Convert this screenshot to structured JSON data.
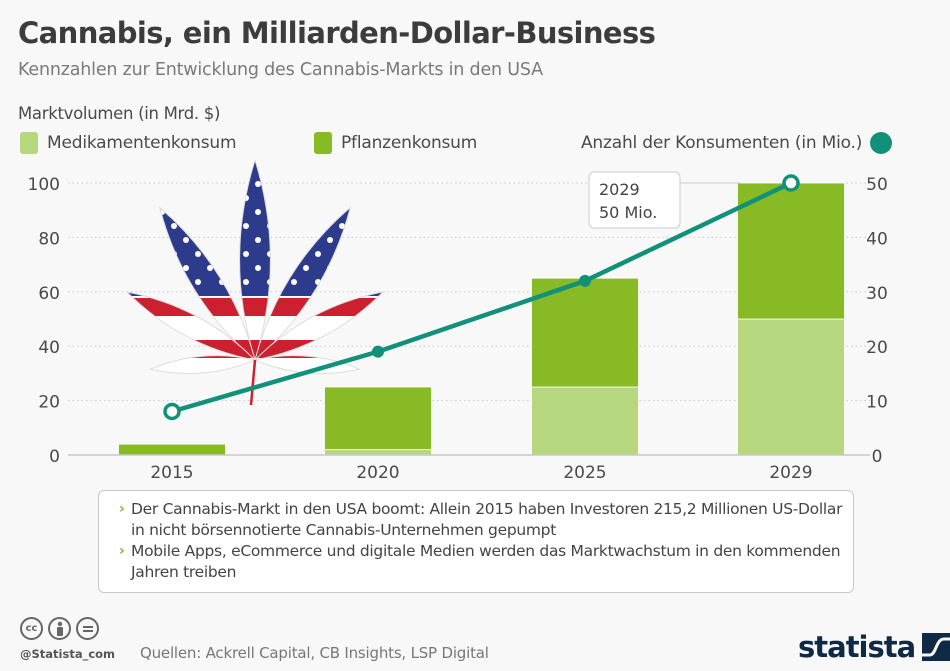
{
  "header": {
    "title": "Cannabis, ein Milliarden-Dollar-Business",
    "subtitle": "Kennzahlen zur Entwicklung des Cannabis-Markts in den USA"
  },
  "chart_data": {
    "type": "bar",
    "stacked": true,
    "title": "Cannabis, ein Milliarden-Dollar-Business",
    "ylabel": "Marktvolumen (in Mrd. $)",
    "y2label": "Anzahl der Konsumenten (in Mio.)",
    "categories": [
      "2015",
      "2020",
      "2025",
      "2029"
    ],
    "ylim": [
      0,
      100
    ],
    "y2lim": [
      0,
      50
    ],
    "yticks": [
      "0",
      "20",
      "40",
      "60",
      "80",
      "100"
    ],
    "y2ticks": [
      "0",
      "10",
      "20",
      "30",
      "40",
      "50"
    ],
    "grid": true,
    "series": [
      {
        "name": "Medikamentenkonsum",
        "type": "bar",
        "color": "#b7d77f",
        "values": [
          0,
          2,
          25,
          50
        ]
      },
      {
        "name": "Pflanzenkonsum",
        "type": "bar",
        "color": "#88ba25",
        "values": [
          4,
          23,
          40,
          50
        ]
      },
      {
        "name": "Anzahl der Konsumenten (in Mio.)",
        "type": "line",
        "axis": "right",
        "color": "#11917a",
        "values": [
          8,
          19,
          32,
          50
        ]
      }
    ],
    "annotation": {
      "line1": "2029",
      "line2": "50 Mio."
    }
  },
  "notes": [
    "Der Cannabis-Markt in den USA boomt: Allein 2015 haben Investoren 215,2 Millionen US-Dollar in nicht börsennotierte Cannabis-Unternehmen gepumpt",
    "Mobile Apps, eCommerce und digitale Medien werden das Marktwachstum in den kommenden Jahren treiben"
  ],
  "footer": {
    "cc_icons": [
      "cc-icon",
      "by-icon",
      "nd-icon"
    ],
    "cc_label": "cc",
    "handle": "@Statista_com",
    "sources": "Quellen: Ackrell Capital, CB Insights, LSP Digital",
    "logo": "statista"
  },
  "colors": {
    "light_green": "#b7d77f",
    "dark_green": "#88ba25",
    "teal": "#11917a",
    "navy": "#0f2a45"
  }
}
